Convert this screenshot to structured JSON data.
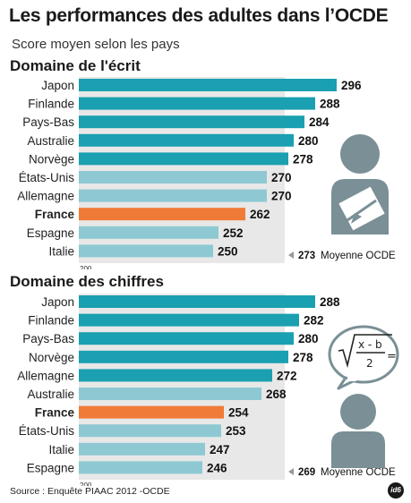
{
  "title": "Les performances des adultes dans l’OCDE",
  "subtitle": "Score moyen selon les pays",
  "source": "Source : Enquête PIAAC 2012 -OCDE",
  "logo_text": "id6",
  "colors": {
    "dark_teal": "#1aa0b0",
    "light_teal": "#8ec9d3",
    "france": "#f07a38",
    "bg_panel": "#e8e8e8",
    "icon_gray": "#7a8f96"
  },
  "chart_data": [
    {
      "type": "bar",
      "orientation": "horizontal",
      "title": "Domaine de l'écrit",
      "categories": [
        "Japon",
        "Finlande",
        "Pays-Bas",
        "Australie",
        "Norvège",
        "États-Unis",
        "Allemagne",
        "France",
        "Espagne",
        "Italie"
      ],
      "values": [
        296,
        288,
        284,
        280,
        278,
        270,
        270,
        262,
        252,
        250
      ],
      "highlight": "France",
      "axis_min_label": "200",
      "xlim": [
        200,
        300
      ],
      "average": {
        "value": "273",
        "label": "Moyenne OCDE"
      }
    },
    {
      "type": "bar",
      "orientation": "horizontal",
      "title": "Domaine des chiffres",
      "categories": [
        "Japon",
        "Finlande",
        "Pays-Bas",
        "Norvège",
        "Allemagne",
        "Australie",
        "France",
        "États-Unis",
        "Italie",
        "Espagne"
      ],
      "values": [
        288,
        282,
        280,
        278,
        272,
        268,
        254,
        253,
        247,
        246
      ],
      "highlight": "France",
      "axis_min_label": "200",
      "xlim": [
        200,
        300
      ],
      "average": {
        "value": "269",
        "label": "Moyenne OCDE"
      }
    }
  ]
}
